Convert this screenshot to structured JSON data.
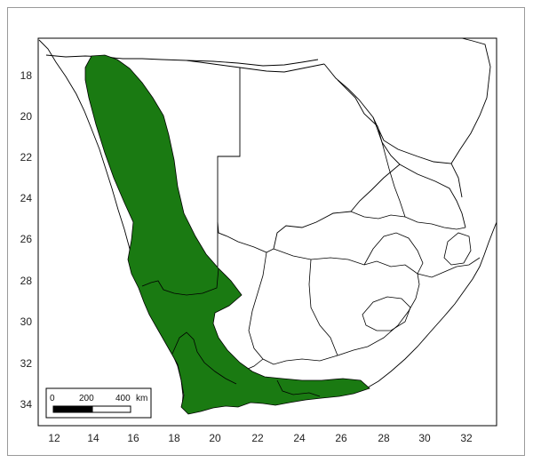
{
  "map": {
    "x_ticks": [
      "12",
      "14",
      "16",
      "18",
      "20",
      "22",
      "24",
      "26",
      "28",
      "30",
      "32"
    ],
    "y_ticks": [
      "18",
      "20",
      "22",
      "24",
      "26",
      "28",
      "30",
      "32",
      "34"
    ],
    "distribution_color": "#1a7a12",
    "border_color": "#000000",
    "scale_bar": {
      "labels": [
        "0",
        "200",
        "400"
      ],
      "unit": "km"
    }
  }
}
